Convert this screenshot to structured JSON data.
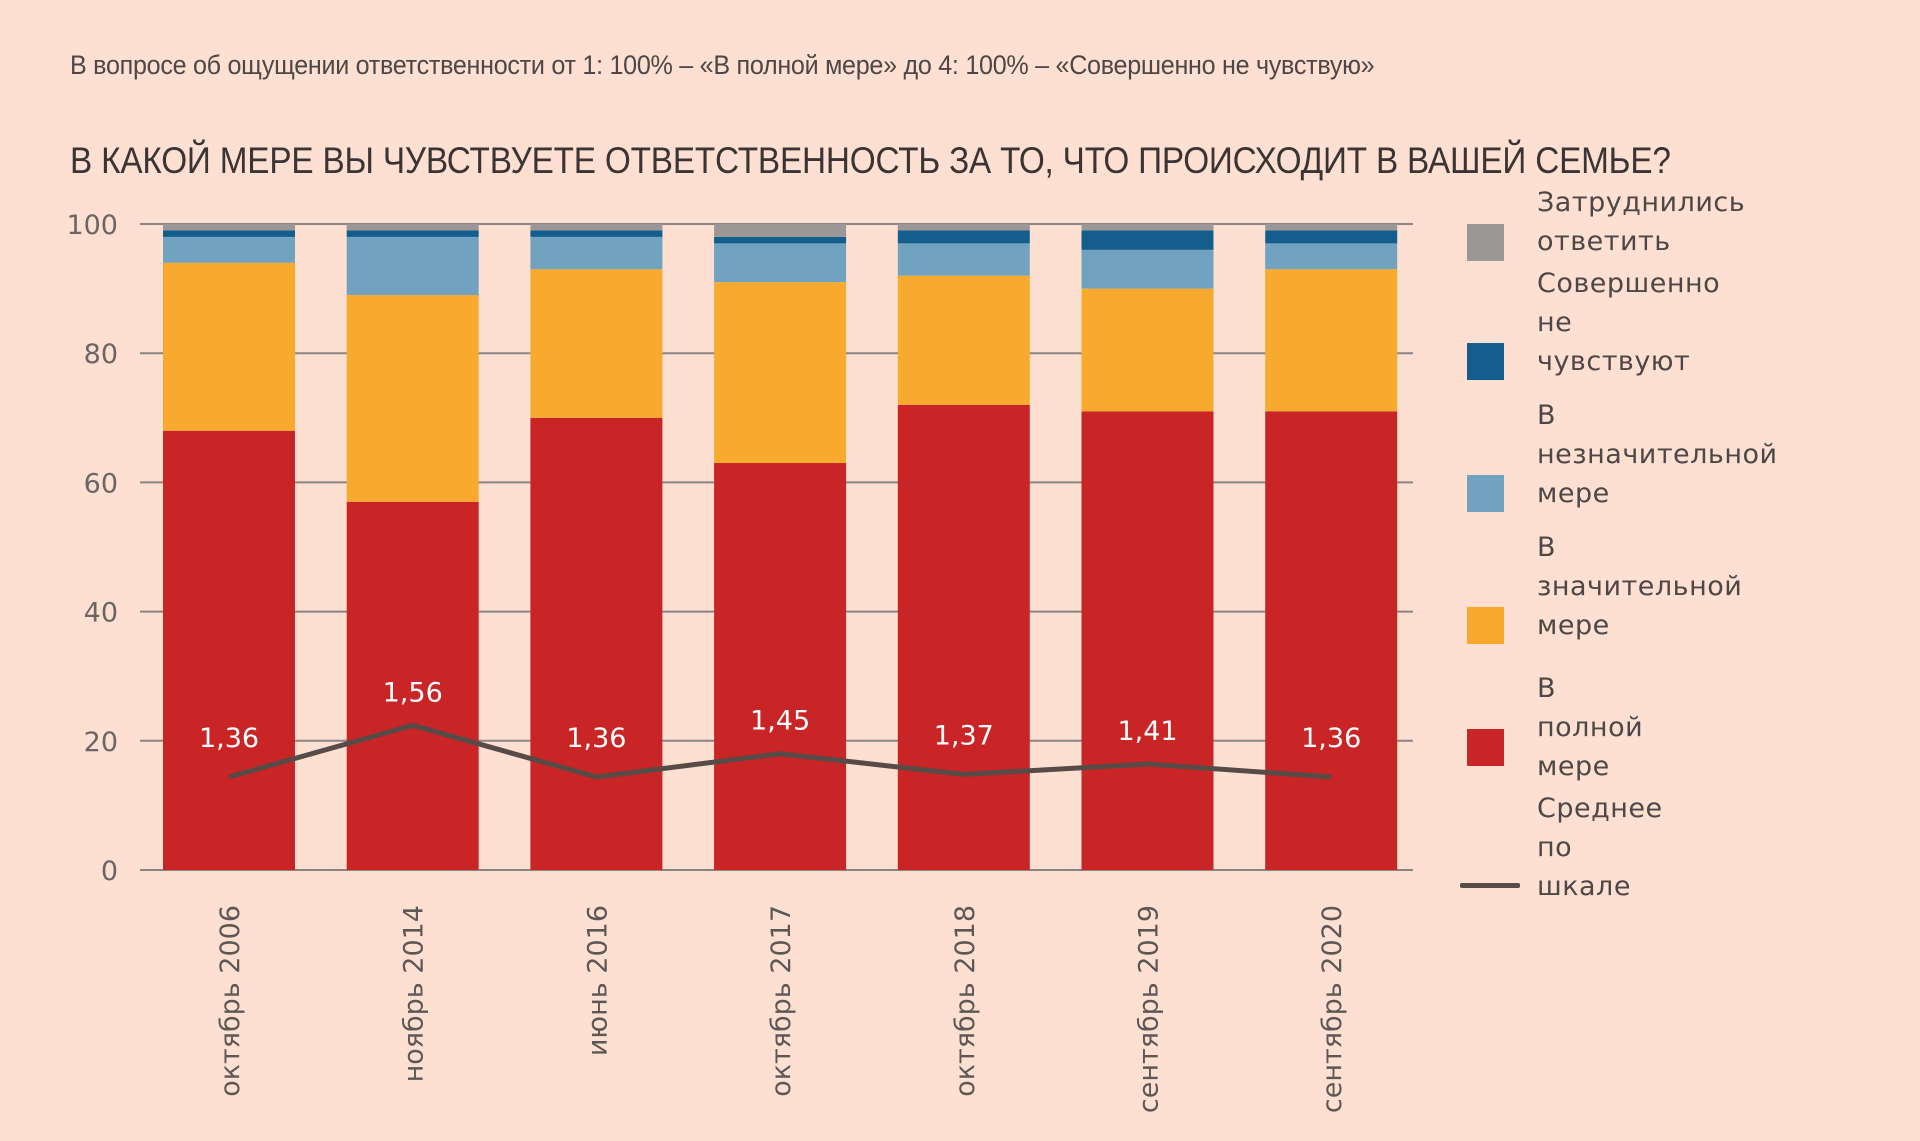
{
  "subtitle": "В вопросе об ощущении ответственности от 1: 100% – «В полной мере» до 4: 100% – «Совершенно не чувствую»",
  "title": "В КАКОЙ МЕРЕ ВЫ ЧУВСТВУЕТЕ ОТВЕТСТВЕННОСТЬ ЗА ТО, ЧТО ПРОИСХОДИТ В ВАШЕЙ СЕМЬЕ?",
  "legend": [
    {
      "label": "Затруднились ответить",
      "color": "#9b9797",
      "kind": "box"
    },
    {
      "label": "Совершенно\nне чувствуют",
      "color": "#135e8c",
      "kind": "box"
    },
    {
      "label": "В незначительной\nмере",
      "color": "#71a2c0",
      "kind": "box"
    },
    {
      "label": "В значительной\nмере",
      "color": "#f8aa2e",
      "kind": "box"
    },
    {
      "label": "В полной мере",
      "color": "#c92426",
      "kind": "box"
    },
    {
      "label": "Среднее\nпо шкале",
      "color": "#574b48",
      "kind": "line"
    }
  ],
  "chart_data": {
    "type": "bar",
    "stacked": true,
    "title": "В КАКОЙ МЕРЕ ВЫ ЧУВСТВУЕТЕ ОТВЕТСТВЕННОСТЬ ЗА ТО, ЧТО ПРОИСХОДИТ В ВАШЕЙ СЕМЬЕ?",
    "subtitle": "В вопросе об ощущении ответственности от 1: 100% – «В полной мере» до 4: 100% – «Совершенно не чувствую»",
    "xlabel": "",
    "ylabel": "",
    "ylim": [
      0,
      100
    ],
    "yticks": [
      0,
      20,
      40,
      60,
      80,
      100
    ],
    "grid": true,
    "legend_position": "right",
    "categories": [
      "октябрь 2006",
      "ноябрь 2014",
      "июнь 2016",
      "октябрь 2017",
      "октябрь 2018",
      "сентябрь 2019",
      "сентябрь 2020"
    ],
    "series": [
      {
        "name": "В полной мере",
        "color": "#c92426",
        "values": [
          68,
          57,
          70,
          63,
          72,
          71,
          71
        ]
      },
      {
        "name": "В значительной мере",
        "color": "#f8aa2e",
        "values": [
          26,
          32,
          23,
          28,
          20,
          19,
          22
        ]
      },
      {
        "name": "В незначительной мере",
        "color": "#71a2c0",
        "values": [
          4,
          9,
          5,
          6,
          5,
          6,
          4
        ]
      },
      {
        "name": "Совершенно не чувствуют",
        "color": "#135e8c",
        "values": [
          1,
          1,
          1,
          1,
          2,
          3,
          2
        ]
      },
      {
        "name": "Затруднились ответить",
        "color": "#9b9797",
        "values": [
          1,
          1,
          1,
          2,
          1,
          1,
          1
        ]
      }
    ],
    "line_series": {
      "name": "Среднее по шкале",
      "color": "#574b48",
      "values": [
        1.36,
        1.56,
        1.36,
        1.45,
        1.37,
        1.41,
        1.36
      ],
      "labels": [
        "1,36",
        "1,56",
        "1,36",
        "1,45",
        "1,37",
        "1,41",
        "1,36"
      ],
      "plotted_as": "40 × (mean − 1) on the 0–100 axis"
    }
  }
}
